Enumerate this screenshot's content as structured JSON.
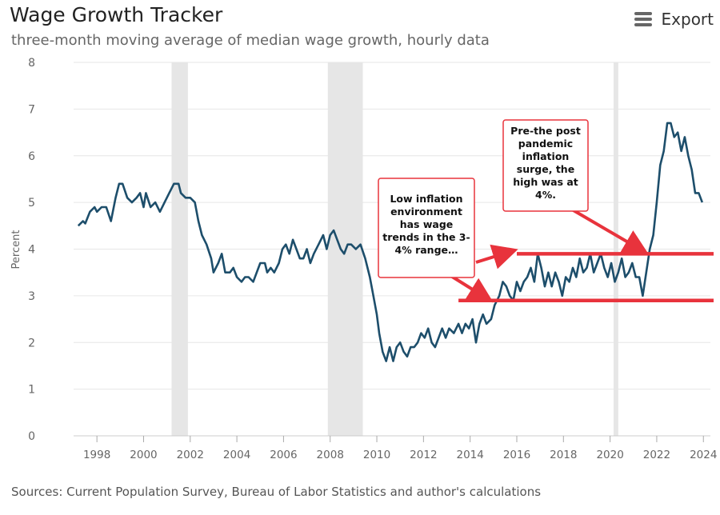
{
  "header": {
    "title": "Wage Growth Tracker",
    "subtitle": "three-month moving average of median wage growth, hourly data",
    "export_label": "Export",
    "export_icon": "hamburger-menu-icon"
  },
  "footer": {
    "sources": "Sources: Current Population Survey, Bureau of Labor Statistics and author's calculations"
  },
  "chart_data": {
    "type": "line",
    "title": "Wage Growth Tracker",
    "subtitle": "three-month moving average of median wage growth, hourly data",
    "ylabel": "Percent",
    "xlabel": "",
    "xlim": [
      1997.0,
      2024.3
    ],
    "ylim": [
      0,
      8
    ],
    "yticks": [
      "0",
      "1",
      "2",
      "3",
      "4",
      "5",
      "6",
      "7",
      "8"
    ],
    "xticks": [
      "1998",
      "2000",
      "2002",
      "2004",
      "2006",
      "2008",
      "2010",
      "2012",
      "2014",
      "2016",
      "2018",
      "2020",
      "2022",
      "2024"
    ],
    "grid": true,
    "legend": "none",
    "colors": {
      "line": "#1d4e6b",
      "recession": "#e6e6e6",
      "annotation": "#e8333c",
      "grid": "#e6e6e6"
    },
    "recessions": [
      {
        "start": 2001.2,
        "end": 2001.9
      },
      {
        "start": 2007.9,
        "end": 2009.4
      },
      {
        "start": 2020.15,
        "end": 2020.35
      }
    ],
    "series": [
      {
        "values": [
          [
            1997.2,
            4.5
          ],
          [
            1997.4,
            4.6
          ],
          [
            1997.5,
            4.55
          ],
          [
            1997.7,
            4.8
          ],
          [
            1997.9,
            4.9
          ],
          [
            1998.0,
            4.8
          ],
          [
            1998.2,
            4.9
          ],
          [
            1998.4,
            4.9
          ],
          [
            1998.6,
            4.6
          ],
          [
            1998.8,
            5.1
          ],
          [
            1998.95,
            5.4
          ],
          [
            1999.1,
            5.4
          ],
          [
            1999.3,
            5.1
          ],
          [
            1999.5,
            5.0
          ],
          [
            1999.7,
            5.1
          ],
          [
            1999.85,
            5.2
          ],
          [
            2000.0,
            4.9
          ],
          [
            2000.1,
            5.2
          ],
          [
            2000.3,
            4.9
          ],
          [
            2000.5,
            5.0
          ],
          [
            2000.7,
            4.8
          ],
          [
            2000.9,
            5.0
          ],
          [
            2001.1,
            5.2
          ],
          [
            2001.3,
            5.4
          ],
          [
            2001.5,
            5.4
          ],
          [
            2001.6,
            5.2
          ],
          [
            2001.8,
            5.1
          ],
          [
            2002.0,
            5.1
          ],
          [
            2002.2,
            5.0
          ],
          [
            2002.35,
            4.6
          ],
          [
            2002.5,
            4.3
          ],
          [
            2002.7,
            4.1
          ],
          [
            2002.9,
            3.8
          ],
          [
            2003.0,
            3.5
          ],
          [
            2003.2,
            3.7
          ],
          [
            2003.35,
            3.9
          ],
          [
            2003.5,
            3.5
          ],
          [
            2003.7,
            3.5
          ],
          [
            2003.85,
            3.6
          ],
          [
            2004.0,
            3.4
          ],
          [
            2004.2,
            3.3
          ],
          [
            2004.35,
            3.4
          ],
          [
            2004.5,
            3.4
          ],
          [
            2004.7,
            3.3
          ],
          [
            2004.85,
            3.5
          ],
          [
            2005.0,
            3.7
          ],
          [
            2005.2,
            3.7
          ],
          [
            2005.3,
            3.5
          ],
          [
            2005.45,
            3.6
          ],
          [
            2005.6,
            3.5
          ],
          [
            2005.8,
            3.7
          ],
          [
            2005.95,
            4.0
          ],
          [
            2006.1,
            4.1
          ],
          [
            2006.25,
            3.9
          ],
          [
            2006.4,
            4.2
          ],
          [
            2006.55,
            4.0
          ],
          [
            2006.7,
            3.8
          ],
          [
            2006.85,
            3.8
          ],
          [
            2007.0,
            4.0
          ],
          [
            2007.15,
            3.7
          ],
          [
            2007.3,
            3.9
          ],
          [
            2007.5,
            4.1
          ],
          [
            2007.7,
            4.3
          ],
          [
            2007.85,
            4.0
          ],
          [
            2008.0,
            4.3
          ],
          [
            2008.15,
            4.4
          ],
          [
            2008.3,
            4.2
          ],
          [
            2008.45,
            4.0
          ],
          [
            2008.6,
            3.9
          ],
          [
            2008.75,
            4.1
          ],
          [
            2008.9,
            4.1
          ],
          [
            2009.1,
            4.0
          ],
          [
            2009.3,
            4.1
          ],
          [
            2009.5,
            3.8
          ],
          [
            2009.7,
            3.4
          ],
          [
            2009.85,
            3.0
          ],
          [
            2010.0,
            2.6
          ],
          [
            2010.1,
            2.2
          ],
          [
            2010.25,
            1.8
          ],
          [
            2010.4,
            1.6
          ],
          [
            2010.55,
            1.9
          ],
          [
            2010.7,
            1.6
          ],
          [
            2010.85,
            1.9
          ],
          [
            2011.0,
            2.0
          ],
          [
            2011.15,
            1.8
          ],
          [
            2011.3,
            1.7
          ],
          [
            2011.45,
            1.9
          ],
          [
            2011.6,
            1.9
          ],
          [
            2011.75,
            2.0
          ],
          [
            2011.9,
            2.2
          ],
          [
            2012.05,
            2.1
          ],
          [
            2012.2,
            2.3
          ],
          [
            2012.35,
            2.0
          ],
          [
            2012.5,
            1.9
          ],
          [
            2012.65,
            2.1
          ],
          [
            2012.8,
            2.3
          ],
          [
            2012.95,
            2.1
          ],
          [
            2013.1,
            2.3
          ],
          [
            2013.3,
            2.2
          ],
          [
            2013.5,
            2.4
          ],
          [
            2013.65,
            2.2
          ],
          [
            2013.8,
            2.4
          ],
          [
            2013.95,
            2.3
          ],
          [
            2014.1,
            2.5
          ],
          [
            2014.25,
            2.0
          ],
          [
            2014.4,
            2.4
          ],
          [
            2014.55,
            2.6
          ],
          [
            2014.7,
            2.4
          ],
          [
            2014.9,
            2.5
          ],
          [
            2015.05,
            2.8
          ],
          [
            2015.25,
            3.0
          ],
          [
            2015.4,
            3.3
          ],
          [
            2015.55,
            3.2
          ],
          [
            2015.7,
            3.0
          ],
          [
            2015.85,
            2.9
          ],
          [
            2016.0,
            3.3
          ],
          [
            2016.15,
            3.1
          ],
          [
            2016.3,
            3.3
          ],
          [
            2016.45,
            3.4
          ],
          [
            2016.6,
            3.6
          ],
          [
            2016.75,
            3.3
          ],
          [
            2016.9,
            3.9
          ],
          [
            2017.05,
            3.6
          ],
          [
            2017.2,
            3.2
          ],
          [
            2017.35,
            3.5
          ],
          [
            2017.5,
            3.2
          ],
          [
            2017.65,
            3.5
          ],
          [
            2017.8,
            3.3
          ],
          [
            2017.95,
            3.0
          ],
          [
            2018.1,
            3.4
          ],
          [
            2018.25,
            3.3
          ],
          [
            2018.4,
            3.6
          ],
          [
            2018.55,
            3.4
          ],
          [
            2018.7,
            3.8
          ],
          [
            2018.85,
            3.5
          ],
          [
            2019.0,
            3.6
          ],
          [
            2019.15,
            3.9
          ],
          [
            2019.3,
            3.5
          ],
          [
            2019.45,
            3.7
          ],
          [
            2019.6,
            3.9
          ],
          [
            2019.75,
            3.6
          ],
          [
            2019.9,
            3.4
          ],
          [
            2020.05,
            3.7
          ],
          [
            2020.2,
            3.3
          ],
          [
            2020.35,
            3.5
          ],
          [
            2020.5,
            3.8
          ],
          [
            2020.65,
            3.4
          ],
          [
            2020.8,
            3.5
          ],
          [
            2020.95,
            3.7
          ],
          [
            2021.1,
            3.4
          ],
          [
            2021.25,
            3.4
          ],
          [
            2021.4,
            3.0
          ],
          [
            2021.55,
            3.5
          ],
          [
            2021.7,
            4.0
          ],
          [
            2021.85,
            4.3
          ],
          [
            2022.0,
            5.0
          ],
          [
            2022.15,
            5.8
          ],
          [
            2022.3,
            6.1
          ],
          [
            2022.45,
            6.7
          ],
          [
            2022.6,
            6.7
          ],
          [
            2022.75,
            6.4
          ],
          [
            2022.9,
            6.5
          ],
          [
            2023.05,
            6.1
          ],
          [
            2023.2,
            6.4
          ],
          [
            2023.35,
            6.0
          ],
          [
            2023.5,
            5.7
          ],
          [
            2023.65,
            5.2
          ],
          [
            2023.8,
            5.2
          ],
          [
            2023.95,
            5.0
          ]
        ]
      }
    ],
    "annotations": [
      {
        "text": "Low inflation environment has wage trends in the 3-4% range…"
      },
      {
        "text": "Pre-the post pandemic inflation surge, the high was at 4%."
      }
    ],
    "reference_lines": [
      {
        "y": 3.9,
        "x_start": 2016.0,
        "x_end": 2024.5
      },
      {
        "y": 2.9,
        "x_start": 2013.5,
        "x_end": 2024.5
      }
    ]
  }
}
